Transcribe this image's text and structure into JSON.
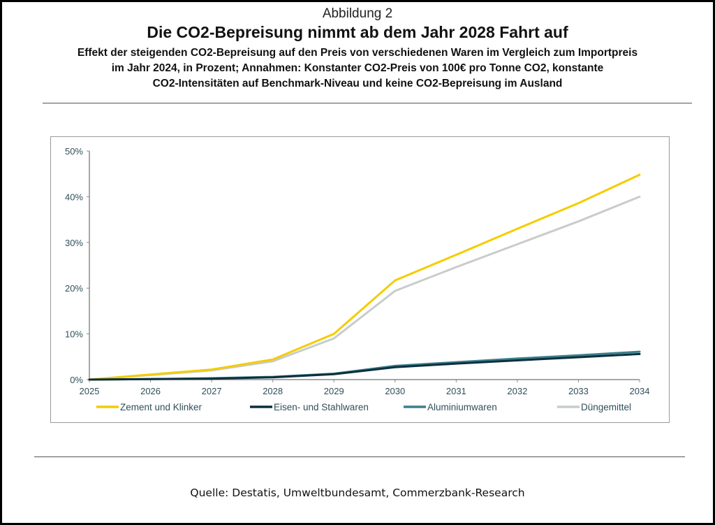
{
  "figure": {
    "label": "Abbildung 2",
    "title": "Die CO2-Bepreisung nimmt ab dem Jahr 2028 Fahrt auf",
    "subtitle_lines": [
      "Effekt der steigenden CO2-Bepreisung auf den Preis von verschiedenen Waren im Vergleich zum Importpreis",
      "im Jahr 2024, in Prozent; Annahmen: Konstanter CO2-Preis von 100€ pro Tonne CO2, konstante",
      "CO2-Intensitäten auf Benchmark-Niveau und keine CO2-Bepreisung im Ausland"
    ],
    "source": "Quelle: Destatis, Umweltbundesamt, Commerzbank-Research"
  },
  "chart_data": {
    "type": "line",
    "title": "Die CO2-Bepreisung nimmt ab dem Jahr 2028 Fahrt auf",
    "xlabel": "",
    "ylabel": "",
    "x": [
      2025,
      2026,
      2027,
      2028,
      2029,
      2030,
      2031,
      2032,
      2033,
      2034
    ],
    "x_tick_labels": [
      "2025",
      "2026",
      "2027",
      "2028",
      "2029",
      "2030",
      "2031",
      "2032",
      "2033",
      "2034"
    ],
    "ylim": [
      0,
      50
    ],
    "y_ticks": [
      0,
      10,
      20,
      30,
      40,
      50
    ],
    "y_tick_labels": [
      "0%",
      "10%",
      "20%",
      "30%",
      "40%",
      "50%"
    ],
    "grid": false,
    "legend_position": "bottom",
    "series": [
      {
        "name": "Zement und Klinker",
        "color": "#F5CC00",
        "values": [
          0,
          1.1,
          2.2,
          4.4,
          10.0,
          21.7,
          27.3,
          33.0,
          38.6,
          44.8
        ]
      },
      {
        "name": "Eisen- und Stahlwaren",
        "color": "#0E2F3D",
        "values": [
          0,
          0.1,
          0.2,
          0.5,
          1.2,
          2.7,
          3.5,
          4.2,
          4.9,
          5.6
        ]
      },
      {
        "name": "Aluminiumwaren",
        "color": "#3A7F8C",
        "values": [
          0,
          0.1,
          0.3,
          0.6,
          1.3,
          3.0,
          3.8,
          4.6,
          5.3,
          6.1
        ]
      },
      {
        "name": "Düngemittel",
        "color": "#C8CCCB",
        "values": [
          0,
          1.0,
          2.0,
          4.0,
          9.0,
          19.4,
          24.6,
          29.6,
          34.6,
          40.0
        ]
      }
    ]
  }
}
